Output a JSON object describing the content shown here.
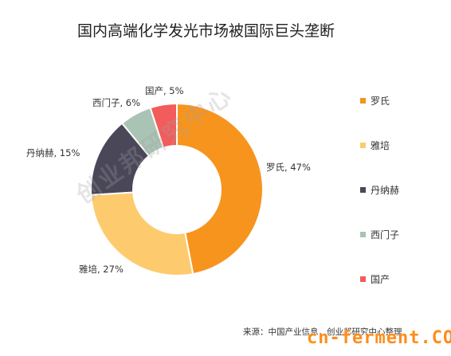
{
  "chart_data": {
    "type": "pie",
    "title": "国内高端化学发光市场被国际巨头垄断",
    "slices": [
      {
        "name": "罗氏",
        "value": 47,
        "label": "罗氏, 47%",
        "color": "#f7941e"
      },
      {
        "name": "雅培",
        "value": 27,
        "label": "雅培, 27%",
        "color": "#fdcb6e"
      },
      {
        "name": "丹纳赫",
        "value": 15,
        "label": "丹纳赫, 15%",
        "color": "#4a4759"
      },
      {
        "name": "西门子",
        "value": 6,
        "label": "西门子, 6%",
        "color": "#a9c4b4"
      },
      {
        "name": "国产",
        "value": 5,
        "label": "国产, 5%",
        "color": "#f25c5c"
      }
    ],
    "legend_position": "right",
    "donut": true
  },
  "watermark": "创业邦研究中心",
  "source": "来源：中国产业信息，创业邦研究中心整理",
  "site_logo": "cn-ferment.COM"
}
